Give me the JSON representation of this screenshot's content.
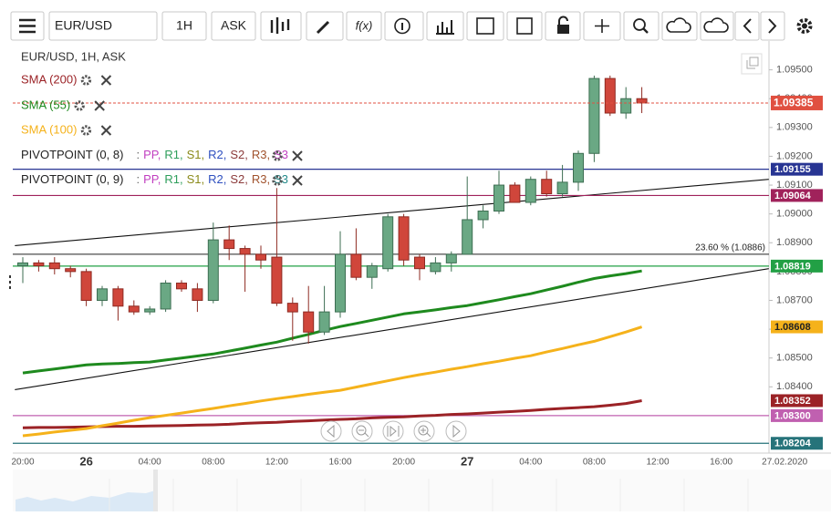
{
  "toolbar": {
    "symbol": "EUR/USD",
    "interval": "1H",
    "side": "ASK",
    "fx": "f(x)"
  },
  "chart_data": {
    "type": "candlestick",
    "title": "EUR/USD, 1H, ASK",
    "categories": [
      "20:00",
      null,
      null,
      null,
      "26",
      null,
      null,
      null,
      "04:00",
      null,
      null,
      null,
      "08:00",
      null,
      null,
      null,
      "12:00",
      null,
      null,
      null,
      "16:00",
      null,
      null,
      null,
      "20:00",
      null,
      null,
      null,
      "27",
      null,
      null,
      null,
      "04:00",
      null,
      null,
      null,
      "08:00",
      null,
      null,
      null,
      "12:00",
      null,
      null,
      null,
      "16:00",
      null,
      null,
      null,
      "27.02.2020"
    ],
    "open": [
      1.0882,
      1.0883,
      1.0883,
      1.0881,
      1.088,
      1.087,
      1.0874,
      1.0868,
      1.0866,
      1.0867,
      1.0876,
      1.0874,
      1.087,
      1.0891,
      1.0888,
      1.0886,
      1.0885,
      1.0869,
      1.0866,
      1.0859,
      1.0866,
      1.0886,
      1.0878,
      1.0881,
      1.0899,
      1.0885,
      1.088,
      1.0883,
      1.0886,
      1.0898,
      1.0901,
      1.091,
      1.0904,
      1.0912,
      1.0907,
      1.0911,
      1.0921,
      1.0947,
      1.0935,
      1.094,
      null,
      null,
      null,
      null,
      null,
      null,
      null,
      null,
      null
    ],
    "high": [
      1.0885,
      1.0884,
      1.0885,
      1.0882,
      1.0881,
      1.0875,
      1.0875,
      1.087,
      1.0868,
      1.0877,
      1.0877,
      1.0876,
      1.0897,
      1.0896,
      1.0889,
      1.0889,
      1.0909,
      1.0871,
      1.0875,
      1.0875,
      1.0894,
      1.0895,
      1.0883,
      1.09,
      1.09,
      1.0886,
      1.0885,
      1.0887,
      1.0913,
      1.0903,
      1.0915,
      1.0911,
      1.0913,
      1.0915,
      1.0917,
      1.0922,
      1.0948,
      1.0948,
      1.0944,
      1.0944,
      null,
      null,
      null,
      null,
      null,
      null,
      null,
      null,
      null
    ],
    "low": [
      1.0876,
      1.088,
      1.0879,
      1.0878,
      1.0868,
      1.0868,
      1.0863,
      1.0865,
      1.0865,
      1.0866,
      1.0873,
      1.0866,
      1.0869,
      1.0884,
      1.0873,
      1.0881,
      1.0868,
      1.0856,
      1.0855,
      1.0858,
      1.0864,
      1.0877,
      1.0874,
      1.088,
      1.0882,
      1.0877,
      1.0879,
      1.088,
      1.0886,
      1.0895,
      1.09,
      1.0904,
      1.0903,
      1.0906,
      1.0906,
      1.0908,
      1.0918,
      1.0934,
      1.0933,
      1.0935,
      null,
      null,
      null,
      null,
      null,
      null,
      null,
      null,
      null
    ],
    "close": [
      1.0883,
      1.0882,
      1.0881,
      1.088,
      1.087,
      1.0874,
      1.0868,
      1.0866,
      1.0867,
      1.0876,
      1.0874,
      1.087,
      1.0891,
      1.0888,
      1.0886,
      1.0884,
      1.0869,
      1.0866,
      1.0859,
      1.0866,
      1.0886,
      1.0878,
      1.0882,
      1.0899,
      1.0884,
      1.0881,
      1.0883,
      1.0886,
      1.0898,
      1.0901,
      1.091,
      1.0904,
      1.0912,
      1.0907,
      1.0911,
      1.0921,
      1.0947,
      1.0935,
      1.094,
      1.09385,
      null,
      null,
      null,
      null,
      null,
      null,
      null,
      null,
      null
    ],
    "up_color": "#6aa884",
    "down_color": "#d0463b",
    "series": [
      {
        "name": "SMA (200)",
        "color": "#9b2226",
        "values": [
          1.08258,
          1.08259,
          1.08259,
          1.0826,
          1.08261,
          1.08262,
          1.08263,
          1.08263,
          1.08264,
          1.08265,
          1.08266,
          1.08267,
          1.08268,
          1.0827,
          1.08273,
          1.08275,
          1.08277,
          1.0828,
          1.08282,
          1.08285,
          1.08287,
          1.08289,
          1.08292,
          1.08294,
          1.08296,
          1.08299,
          1.08301,
          1.08304,
          1.08306,
          1.08309,
          1.08312,
          1.08315,
          1.08318,
          1.08322,
          1.08325,
          1.08328,
          1.08331,
          1.08336,
          1.08342,
          1.08352,
          null,
          null,
          null,
          null,
          null,
          null,
          null,
          null,
          null
        ]
      },
      {
        "name": "SMA (55)",
        "color": "#1e8a1e",
        "values": [
          1.08448,
          1.08455,
          1.08462,
          1.08469,
          1.08476,
          1.08479,
          1.08481,
          1.08484,
          1.08486,
          1.08493,
          1.085,
          1.08507,
          1.08514,
          1.08524,
          1.08534,
          1.08545,
          1.08555,
          1.08569,
          1.08582,
          1.08596,
          1.08609,
          1.0862,
          1.08631,
          1.08642,
          1.08653,
          1.0866,
          1.08667,
          1.08675,
          1.08682,
          1.08692,
          1.08702,
          1.08713,
          1.08723,
          1.08736,
          1.08749,
          1.08763,
          1.08776,
          1.08785,
          1.08793,
          1.08802,
          null,
          null,
          null,
          null,
          null,
          null,
          null,
          null,
          null
        ]
      },
      {
        "name": "SMA (100)",
        "color": "#f5b21b",
        "values": [
          1.0823,
          1.08236,
          1.08243,
          1.08249,
          1.08255,
          1.08265,
          1.08274,
          1.08284,
          1.08293,
          1.08301,
          1.08309,
          1.08317,
          1.08325,
          1.08334,
          1.08342,
          1.08351,
          1.08359,
          1.08366,
          1.08374,
          1.08381,
          1.08388,
          1.08399,
          1.0841,
          1.08421,
          1.08432,
          1.08442,
          1.08451,
          1.08461,
          1.0847,
          1.0848,
          1.08489,
          1.08499,
          1.08508,
          1.08521,
          1.08533,
          1.08546,
          1.08558,
          1.08574,
          1.0859,
          1.08608,
          null,
          null,
          null,
          null,
          null,
          null,
          null,
          null,
          null
        ]
      }
    ],
    "pivot_indicators": [
      {
        "label": "PIVOTPOINT (0, 8)",
        "items": [
          {
            "text": ":",
            "color": "#666666"
          },
          {
            "text": "PP,",
            "color": "#c13fc0"
          },
          {
            "text": "R1,",
            "color": "#2e9e5b"
          },
          {
            "text": "S1,",
            "color": "#8a8a1a"
          },
          {
            "text": "R2,",
            "color": "#2e4fbf"
          },
          {
            "text": "S2,",
            "color": "#8b3a3a"
          },
          {
            "text": "R3,",
            "color": "#a0522d"
          },
          {
            "text": "S3",
            "color": "#c13fc0"
          }
        ]
      },
      {
        "label": "PIVOTPOINT (0, 9)",
        "items": [
          {
            "text": ":",
            "color": "#666666"
          },
          {
            "text": "PP,",
            "color": "#c13fc0"
          },
          {
            "text": "R1,",
            "color": "#2e9e5b"
          },
          {
            "text": "S1,",
            "color": "#8a8a1a"
          },
          {
            "text": "R2,",
            "color": "#2e4fbf"
          },
          {
            "text": "S2,",
            "color": "#8b3a3a"
          },
          {
            "text": "R3,",
            "color": "#a0522d"
          },
          {
            "text": "S3",
            "color": "#238b8b"
          }
        ]
      }
    ],
    "ylim": [
      1.0817,
      1.096
    ],
    "yticks": [
      {
        "value": 1.084,
        "label": "1.08400"
      },
      {
        "value": 1.085,
        "label": "1.08500"
      },
      {
        "value": 1.086,
        "label": "1.08600"
      },
      {
        "value": 1.087,
        "label": "1.08700"
      },
      {
        "value": 1.088,
        "label": "1.08800"
      },
      {
        "value": 1.089,
        "label": "1.08900"
      },
      {
        "value": 1.09,
        "label": "1.09000"
      },
      {
        "value": 1.091,
        "label": "1.09100"
      },
      {
        "value": 1.092,
        "label": "1.09200"
      },
      {
        "value": 1.093,
        "label": "1.09300"
      },
      {
        "value": 1.094,
        "label": "1.09400"
      },
      {
        "value": 1.095,
        "label": "1.09500"
      }
    ],
    "last_price": {
      "value": 1.09385,
      "color": "#e05040"
    },
    "levels": [
      {
        "value": 1.09155,
        "color": "#283593"
      },
      {
        "value": 1.09064,
        "color": "#a0225b"
      },
      {
        "value": 1.08819,
        "color": "#22a045"
      },
      {
        "value": 1.083,
        "label": "1.08300",
        "color": "#c060b0"
      },
      {
        "value": 1.08204,
        "color": "#26737a"
      }
    ],
    "fib": {
      "label": "23.60 % (1.0886)",
      "value": 1.0886
    },
    "trendlines": [
      {
        "from": [
          -0.5,
          1.0889
        ],
        "to": [
          47,
          1.0912
        ]
      },
      {
        "from": [
          -0.5,
          1.0839
        ],
        "to": [
          47,
          1.0881
        ]
      }
    ]
  }
}
